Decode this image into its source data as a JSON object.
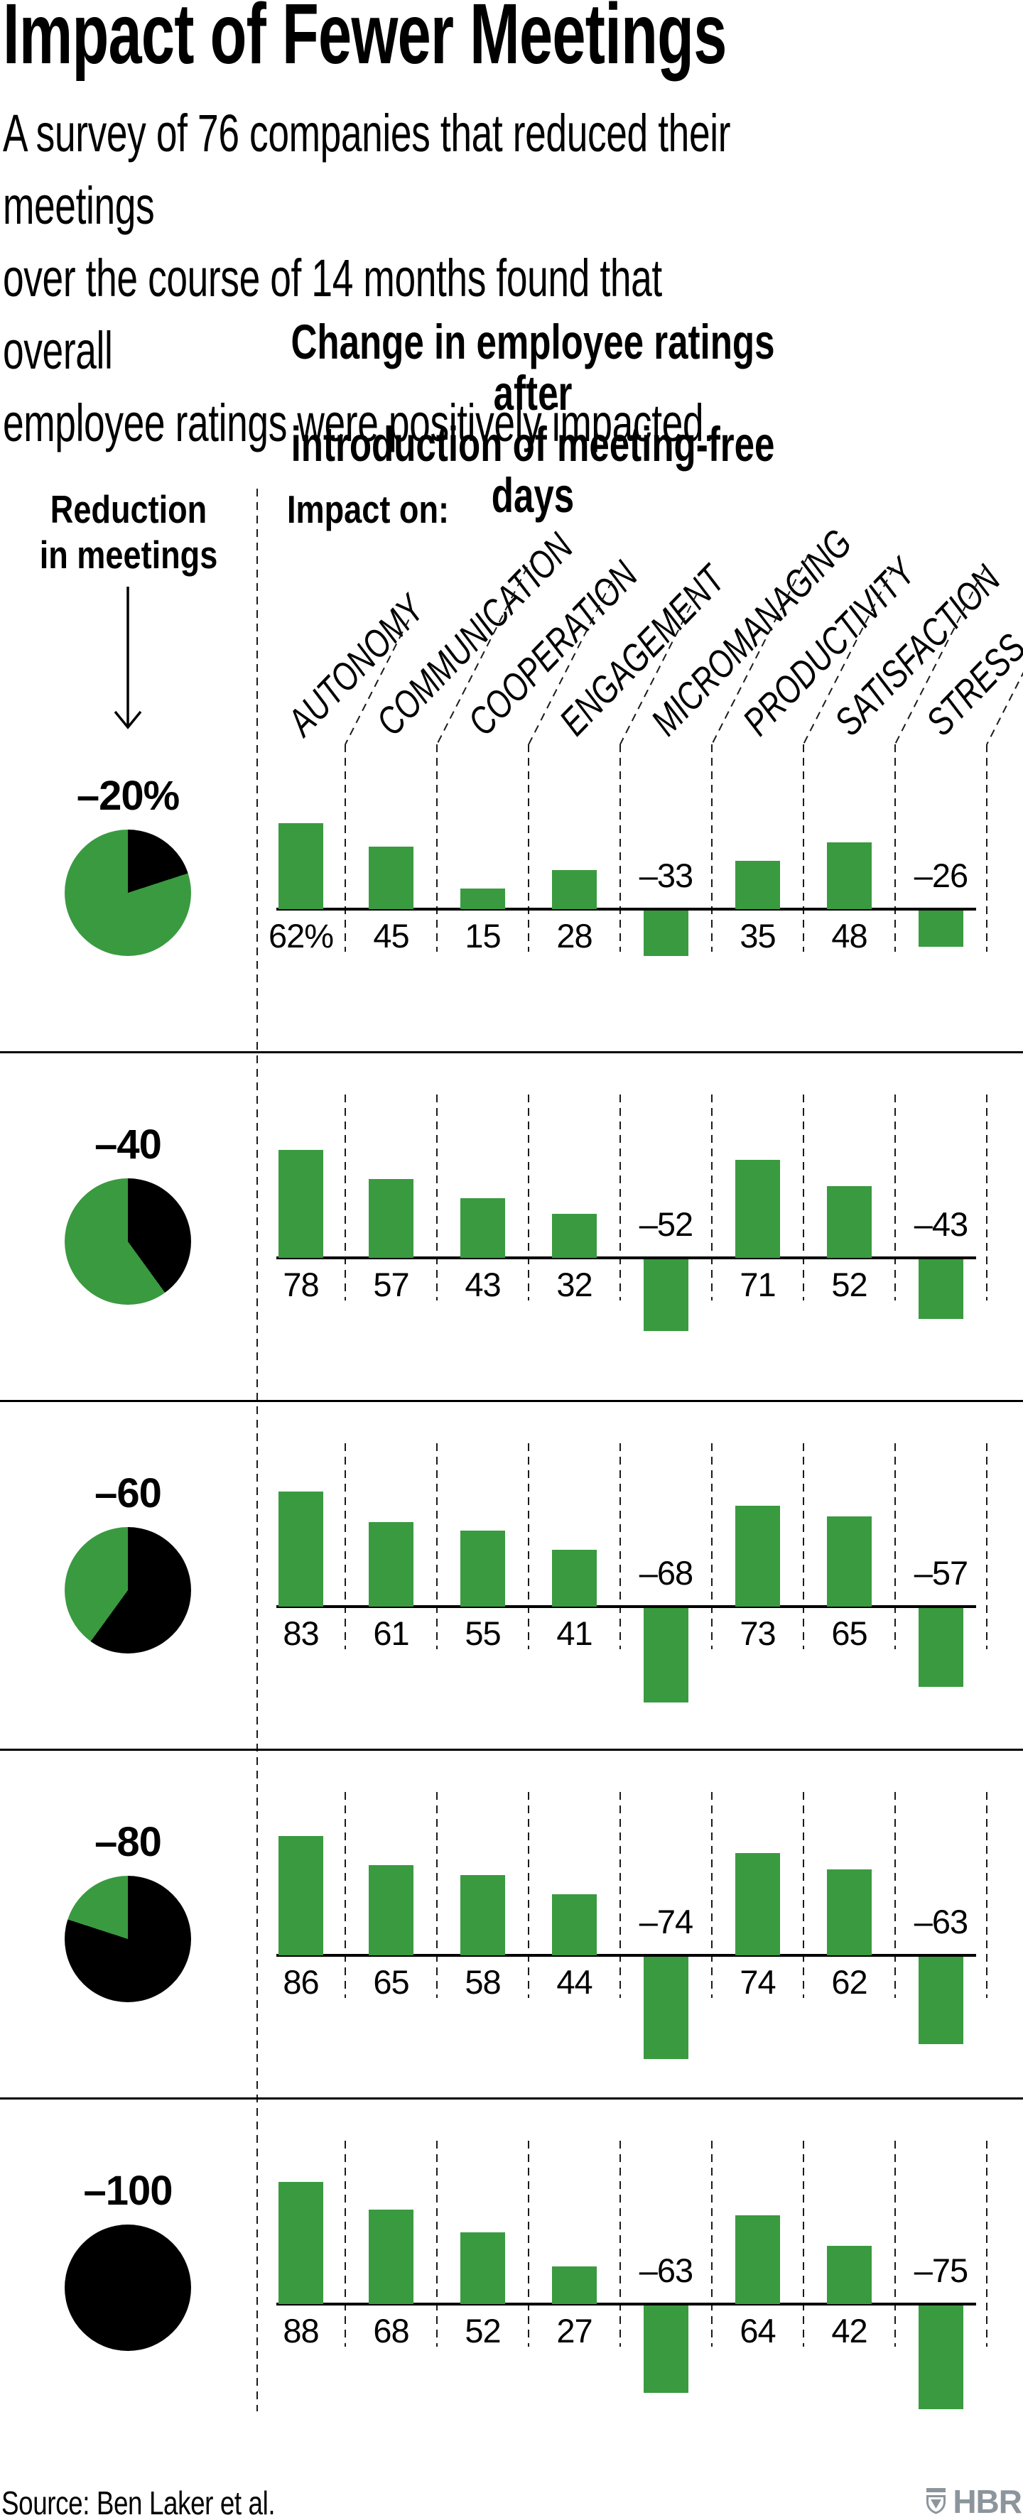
{
  "page": {
    "title": "Impact of Fewer Meetings",
    "subtitle": "A survey of 76 companies that reduced their meetings\nover the course of 14 months found that overall\nemployee ratings were positively impacted.",
    "source": "Source: Ben Laker et al."
  },
  "chart": {
    "heading": "Change in employee ratings after\nintroduction of meeting-free days",
    "reduction_label": "Reduction\nin meetings",
    "impact_label": "Impact on:",
    "arrow_icon": "down-arrow-icon"
  },
  "logo": {
    "icon": "hbr-shield-icon",
    "text": "HBR"
  },
  "colors": {
    "green": "#3A9A40",
    "black": "#000000",
    "dash_gray": "#1a1a1a",
    "logo_gray": "#8C959C"
  },
  "chart_data": {
    "type": "bar",
    "title": "Change in employee ratings after introduction of meeting-free days",
    "categories": [
      "AUTONOMY",
      "COMMUNICATION",
      "COOPERATION",
      "ENGAGEMENT",
      "MICROMANAGING",
      "PRODUCTIVITY",
      "SATISFACTION",
      "STRESS"
    ],
    "row_axis_label": "Reduction in meetings",
    "unit": "percent change in rating",
    "ylim": [
      -80,
      90
    ],
    "legend": "none",
    "grid": "dashed-column-separators",
    "rows": [
      {
        "label": "–20%",
        "reduction_percent": 20,
        "values": [
          62,
          45,
          15,
          28,
          -33,
          35,
          48,
          -26
        ],
        "value_labels": [
          "62%",
          "45",
          "15",
          "28",
          "–33",
          "35",
          "48",
          "–26"
        ]
      },
      {
        "label": "–40",
        "reduction_percent": 40,
        "values": [
          78,
          57,
          43,
          32,
          -52,
          71,
          52,
          -43
        ],
        "value_labels": [
          "78",
          "57",
          "43",
          "32",
          "–52",
          "71",
          "52",
          "–43"
        ]
      },
      {
        "label": "–60",
        "reduction_percent": 60,
        "values": [
          83,
          61,
          55,
          41,
          -68,
          73,
          65,
          -57
        ],
        "value_labels": [
          "83",
          "61",
          "55",
          "41",
          "–68",
          "73",
          "65",
          "–57"
        ]
      },
      {
        "label": "–80",
        "reduction_percent": 80,
        "values": [
          86,
          65,
          58,
          44,
          -74,
          74,
          62,
          -63
        ],
        "value_labels": [
          "86",
          "65",
          "58",
          "44",
          "–74",
          "74",
          "62",
          "–63"
        ]
      },
      {
        "label": "–100",
        "reduction_percent": 100,
        "values": [
          88,
          68,
          52,
          27,
          -63,
          64,
          42,
          -75
        ],
        "value_labels": [
          "88",
          "68",
          "52",
          "27",
          "–63",
          "64",
          "42",
          "–75"
        ]
      }
    ]
  }
}
